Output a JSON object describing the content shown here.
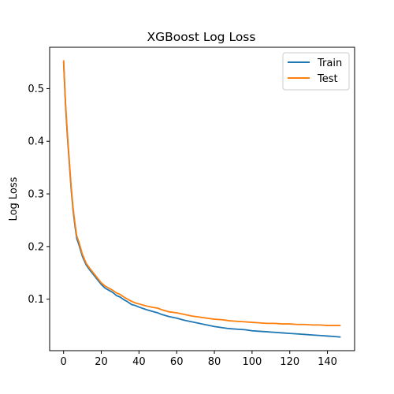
{
  "chart_data": {
    "type": "line",
    "title": "XGBoost Log Loss",
    "xlabel": "",
    "ylabel": "Log Loss",
    "xlim": [
      -7.4,
      154.4
    ],
    "ylim": [
      0.0022,
      0.5785
    ],
    "xticks": [
      0,
      20,
      40,
      60,
      80,
      100,
      120,
      140
    ],
    "yticks": [
      0.1,
      0.2,
      0.3,
      0.4,
      0.5
    ],
    "grid": false,
    "legend": "top-right",
    "series": [
      {
        "name": "Train",
        "color": "#1f77b4",
        "x": [
          0,
          1,
          2,
          3,
          4,
          5,
          6,
          7,
          8,
          10,
          12,
          14,
          16,
          18,
          20,
          22,
          24,
          26,
          28,
          30,
          32,
          34,
          36,
          38,
          40,
          44,
          48,
          50,
          52,
          56,
          60,
          64,
          68,
          72,
          76,
          80,
          84,
          88,
          92,
          96,
          100,
          104,
          108,
          112,
          116,
          120,
          124,
          128,
          132,
          136,
          140,
          144,
          147
        ],
        "y": [
          0.551,
          0.47,
          0.41,
          0.36,
          0.31,
          0.27,
          0.24,
          0.215,
          0.205,
          0.181,
          0.165,
          0.155,
          0.146,
          0.137,
          0.128,
          0.121,
          0.117,
          0.113,
          0.107,
          0.104,
          0.099,
          0.095,
          0.09,
          0.088,
          0.085,
          0.08,
          0.076,
          0.074,
          0.071,
          0.067,
          0.064,
          0.06,
          0.057,
          0.054,
          0.051,
          0.048,
          0.046,
          0.044,
          0.043,
          0.042,
          0.04,
          0.039,
          0.038,
          0.037,
          0.036,
          0.035,
          0.034,
          0.033,
          0.032,
          0.031,
          0.03,
          0.029,
          0.028
        ]
      },
      {
        "name": "Test",
        "color": "#ff7f0e",
        "x": [
          0,
          1,
          2,
          3,
          4,
          5,
          6,
          7,
          8,
          10,
          12,
          14,
          16,
          18,
          20,
          22,
          24,
          26,
          28,
          30,
          32,
          34,
          36,
          38,
          40,
          44,
          48,
          50,
          52,
          56,
          60,
          64,
          68,
          72,
          76,
          80,
          84,
          88,
          92,
          96,
          100,
          104,
          108,
          112,
          116,
          120,
          124,
          128,
          132,
          136,
          140,
          144,
          147
        ],
        "y": [
          0.554,
          0.475,
          0.415,
          0.365,
          0.315,
          0.275,
          0.245,
          0.22,
          0.21,
          0.185,
          0.168,
          0.158,
          0.149,
          0.14,
          0.131,
          0.125,
          0.121,
          0.117,
          0.112,
          0.109,
          0.104,
          0.1,
          0.096,
          0.093,
          0.091,
          0.087,
          0.084,
          0.083,
          0.08,
          0.076,
          0.074,
          0.071,
          0.068,
          0.066,
          0.064,
          0.062,
          0.061,
          0.059,
          0.058,
          0.057,
          0.056,
          0.055,
          0.054,
          0.054,
          0.053,
          0.053,
          0.052,
          0.052,
          0.051,
          0.051,
          0.05,
          0.05,
          0.05
        ]
      }
    ]
  }
}
